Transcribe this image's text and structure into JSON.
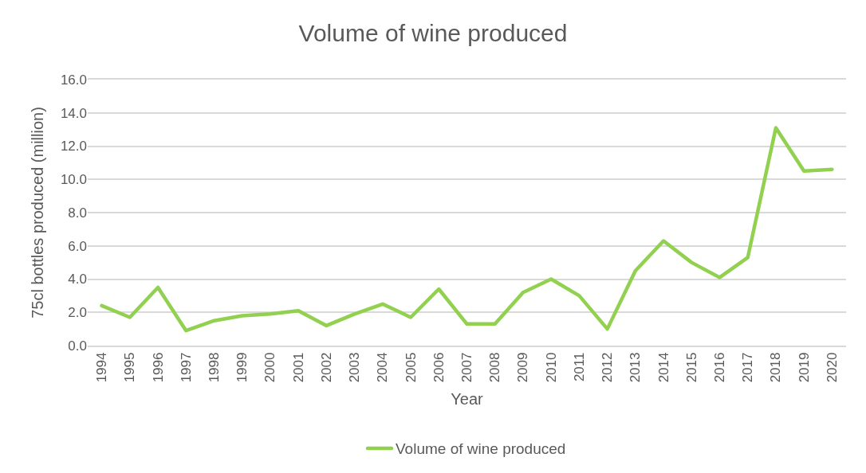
{
  "chart_data": {
    "type": "line",
    "title": "Volume of wine produced",
    "xlabel": "Year",
    "ylabel": "75cl bottles produced (million)",
    "categories": [
      "1994",
      "1995",
      "1996",
      "1997",
      "1998",
      "1999",
      "2000",
      "2001",
      "2002",
      "2003",
      "2004",
      "2005",
      "2006",
      "2007",
      "2008",
      "2009",
      "2010",
      "2011",
      "2012",
      "2013",
      "2014",
      "2015",
      "2016",
      "2017",
      "2018",
      "2019",
      "2020"
    ],
    "series": [
      {
        "name": "Volume of wine produced",
        "color": "#92d050",
        "values": [
          2.4,
          1.7,
          3.5,
          0.9,
          1.5,
          1.8,
          1.9,
          2.1,
          1.2,
          1.9,
          2.5,
          1.7,
          3.4,
          1.3,
          1.3,
          3.2,
          4.0,
          3.0,
          1.0,
          4.5,
          6.3,
          5.0,
          4.1,
          5.3,
          13.1,
          10.5,
          10.6
        ]
      }
    ],
    "ylim": [
      0,
      16
    ],
    "yticks": [
      {
        "value": 0,
        "label": "0.0"
      },
      {
        "value": 2,
        "label": "2.0"
      },
      {
        "value": 4,
        "label": "4.0"
      },
      {
        "value": 6,
        "label": "6.0"
      },
      {
        "value": 8,
        "label": "8.0"
      },
      {
        "value": 10,
        "label": "10.0"
      },
      {
        "value": 12,
        "label": "12.0"
      },
      {
        "value": 14,
        "label": "14.0"
      },
      {
        "value": 16,
        "label": "16.0"
      }
    ],
    "grid": "y",
    "legend": "bottom",
    "marker": "none",
    "line_style": "solid"
  }
}
